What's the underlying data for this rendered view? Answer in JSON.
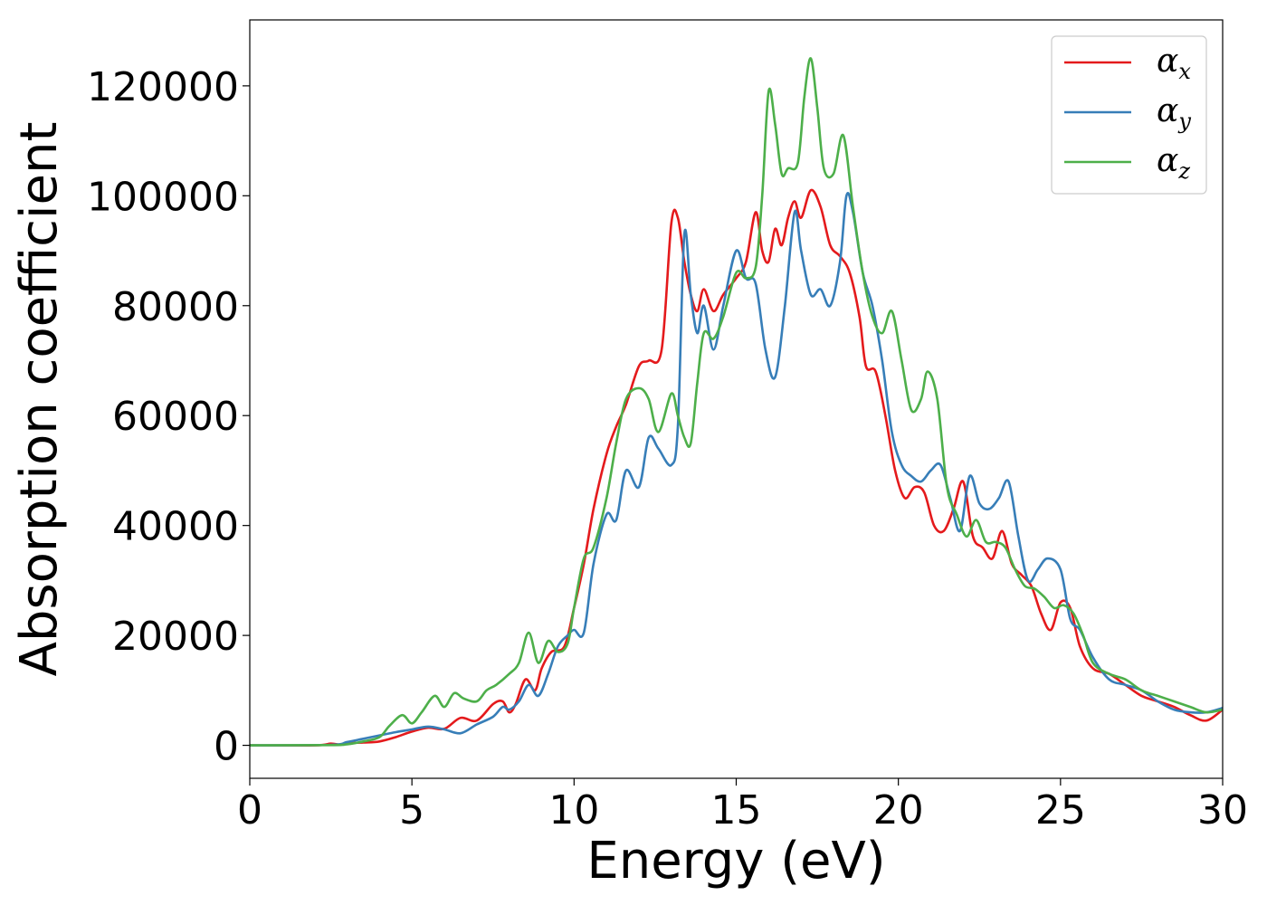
{
  "chart_data": {
    "type": "line",
    "title": "",
    "xlabel": "Energy (eV)",
    "ylabel": "Absorption coefficient",
    "xlim": [
      0,
      30
    ],
    "ylim": [
      -6000,
      132000
    ],
    "xticks": [
      0,
      5,
      10,
      15,
      20,
      25,
      30
    ],
    "yticks": [
      0,
      20000,
      40000,
      60000,
      80000,
      100000,
      120000
    ],
    "grid": false,
    "legend_position": "top-right",
    "series": [
      {
        "name": "α_x",
        "legend_symbol": "α",
        "legend_sub": "x",
        "color": "#e41a1c",
        "x": [
          0,
          2,
          2.5,
          2.8,
          3,
          3.5,
          4,
          4.5,
          5,
          5.5,
          6,
          6.5,
          7,
          7.5,
          7.8,
          8,
          8.2,
          8.5,
          8.8,
          9,
          9.3,
          9.7,
          10,
          10.3,
          10.6,
          11,
          11.3,
          11.6,
          12,
          12.3,
          12.7,
          13,
          13.2,
          13.4,
          13.6,
          13.8,
          14,
          14.3,
          14.6,
          15,
          15.3,
          15.6,
          15.8,
          16,
          16.2,
          16.4,
          16.6,
          16.8,
          17,
          17.3,
          17.6,
          17.9,
          18.2,
          18.5,
          18.8,
          19,
          19.3,
          19.6,
          19.9,
          20.2,
          20.5,
          20.8,
          21.1,
          21.4,
          21.7,
          22,
          22.3,
          22.6,
          22.9,
          23.2,
          23.5,
          23.8,
          24.1,
          24.4,
          24.7,
          25,
          25.3,
          25.6,
          26,
          26.5,
          27,
          27.5,
          28,
          28.5,
          29,
          29.5,
          30
        ],
        "y": [
          0,
          0,
          300,
          100,
          400,
          500,
          700,
          1500,
          2500,
          3200,
          3000,
          5000,
          4500,
          7500,
          8000,
          6000,
          7500,
          12000,
          10000,
          14000,
          17000,
          18000,
          25000,
          33000,
          43000,
          53000,
          58000,
          62000,
          69000,
          70000,
          72000,
          95000,
          96000,
          88000,
          82000,
          79000,
          83000,
          79000,
          82000,
          85000,
          88000,
          97000,
          90000,
          88000,
          94000,
          91000,
          96000,
          99000,
          96000,
          101000,
          98000,
          91000,
          89000,
          86000,
          78000,
          69000,
          68000,
          60000,
          50000,
          45000,
          47000,
          46000,
          40000,
          39000,
          43000,
          48000,
          38000,
          36000,
          34000,
          39000,
          33000,
          31000,
          29000,
          24000,
          21000,
          26000,
          25000,
          18000,
          14000,
          13000,
          11000,
          9000,
          8000,
          7000,
          5500,
          4500,
          6500
        ]
      },
      {
        "name": "α_y",
        "legend_symbol": "α",
        "legend_sub": "y",
        "color": "#377eb8",
        "x": [
          0,
          2.5,
          3,
          3.5,
          4,
          4.5,
          5,
          5.5,
          6,
          6.5,
          7,
          7.5,
          7.8,
          8,
          8.3,
          8.6,
          8.9,
          9.2,
          9.5,
          9.8,
          10,
          10.3,
          10.6,
          11,
          11.3,
          11.6,
          12,
          12.3,
          12.6,
          13,
          13.2,
          13.4,
          13.6,
          13.8,
          14,
          14.3,
          14.6,
          15,
          15.3,
          15.6,
          15.9,
          16.2,
          16.5,
          16.8,
          17,
          17.3,
          17.6,
          17.9,
          18.2,
          18.4,
          18.6,
          18.9,
          19.2,
          19.5,
          19.8,
          20.1,
          20.4,
          20.7,
          21,
          21.3,
          21.6,
          21.9,
          22.2,
          22.5,
          22.8,
          23.1,
          23.4,
          23.7,
          24,
          24.3,
          24.6,
          25,
          25.3,
          25.6,
          26,
          26.5,
          27,
          27.5,
          28,
          28.5,
          29,
          29.5,
          30
        ],
        "y": [
          0,
          100,
          600,
          1200,
          1800,
          2400,
          2900,
          3400,
          2900,
          2200,
          3800,
          5200,
          7000,
          6500,
          8000,
          11000,
          9000,
          13000,
          18000,
          20000,
          21000,
          20500,
          33000,
          42000,
          41000,
          50000,
          47000,
          56000,
          54000,
          51000,
          58000,
          93000,
          82000,
          75000,
          80000,
          72000,
          80000,
          90000,
          85000,
          84000,
          72000,
          67000,
          80000,
          97000,
          90000,
          82000,
          83000,
          80000,
          88000,
          100000,
          97000,
          86000,
          80000,
          70000,
          57000,
          51000,
          49000,
          48000,
          50000,
          51000,
          45000,
          39000,
          49000,
          44000,
          43000,
          45000,
          48000,
          38000,
          30000,
          32000,
          34000,
          32000,
          23000,
          21000,
          16000,
          12000,
          11000,
          10000,
          8000,
          6500,
          6000,
          6000,
          6800
        ]
      },
      {
        "name": "α_z",
        "legend_symbol": "α",
        "legend_sub": "z",
        "color": "#4daf4a",
        "x": [
          0,
          2.5,
          3,
          3.5,
          4,
          4.3,
          4.7,
          5,
          5.3,
          5.7,
          6,
          6.3,
          6.6,
          7,
          7.3,
          7.6,
          8,
          8.3,
          8.6,
          8.9,
          9.2,
          9.5,
          9.8,
          10,
          10.3,
          10.6,
          11,
          11.3,
          11.6,
          12,
          12.3,
          12.6,
          13,
          13.2,
          13.4,
          13.6,
          13.8,
          14,
          14.3,
          14.6,
          15,
          15.3,
          15.6,
          15.8,
          16,
          16.2,
          16.4,
          16.6,
          16.9,
          17.1,
          17.3,
          17.5,
          17.7,
          18,
          18.3,
          18.6,
          18.9,
          19.2,
          19.5,
          19.8,
          20.1,
          20.4,
          20.7,
          20.9,
          21.2,
          21.5,
          21.8,
          22.1,
          22.4,
          22.7,
          23,
          23.3,
          23.6,
          23.9,
          24.2,
          24.5,
          24.8,
          25.1,
          25.4,
          25.7,
          26,
          26.5,
          27,
          27.5,
          28,
          28.5,
          29,
          29.5,
          30
        ],
        "y": [
          0,
          50,
          200,
          700,
          1500,
          3500,
          5500,
          4000,
          6000,
          9000,
          7000,
          9500,
          8500,
          8000,
          10000,
          11000,
          13000,
          15000,
          20500,
          15000,
          19000,
          17000,
          18500,
          25000,
          34000,
          36000,
          45000,
          55000,
          63000,
          65000,
          63000,
          57000,
          64000,
          60000,
          56000,
          55000,
          66000,
          75000,
          74000,
          78000,
          86000,
          85000,
          87000,
          100000,
          119000,
          113000,
          104000,
          105000,
          106000,
          118000,
          125000,
          116000,
          105000,
          104000,
          111000,
          98000,
          86000,
          78000,
          75000,
          79000,
          70000,
          61000,
          63000,
          68000,
          63000,
          47000,
          42000,
          38000,
          41000,
          37000,
          37000,
          36000,
          32000,
          29000,
          28500,
          27000,
          25000,
          25500,
          24000,
          20000,
          15000,
          13000,
          12000,
          10000,
          9000,
          8000,
          7000,
          6000,
          6500
        ]
      }
    ]
  }
}
